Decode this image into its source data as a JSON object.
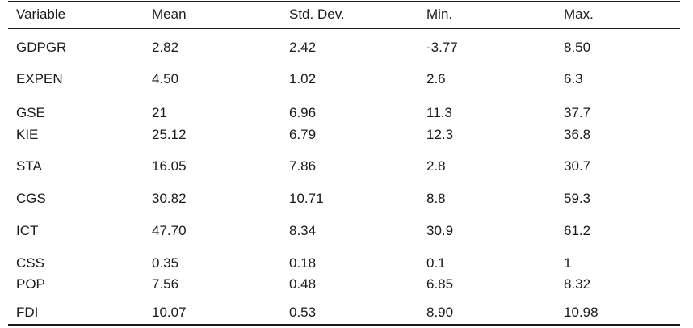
{
  "headers": [
    "Variable",
    "Mean",
    "Std. Dev.",
    "Min.",
    "Max."
  ],
  "rows": [
    [
      "GDPGR",
      "2.82",
      "2.42",
      "-3.77",
      "8.50"
    ],
    [
      "EXPEN",
      "4.50",
      "1.02",
      "2.6",
      "6.3"
    ],
    [
      "GSE",
      "21",
      "6.96",
      "11.3",
      "37.7"
    ],
    [
      "KIE",
      "25.12",
      "6.79",
      "12.3",
      "36.8"
    ],
    [
      "STA",
      "16.05",
      "7.86",
      "2.8",
      "30.7"
    ],
    [
      "CGS",
      "30.82",
      "10.71",
      "8.8",
      "59.3"
    ],
    [
      "ICT",
      "47.70",
      "8.34",
      "30.9",
      "61.2"
    ],
    [
      "CSS",
      "0.35",
      "0.18",
      "0.1",
      "1"
    ],
    [
      "POP",
      "7.56",
      "0.48",
      "6.85",
      "8.32"
    ],
    [
      "FDI",
      "10.07",
      "0.53",
      "8.90",
      "10.98"
    ]
  ]
}
